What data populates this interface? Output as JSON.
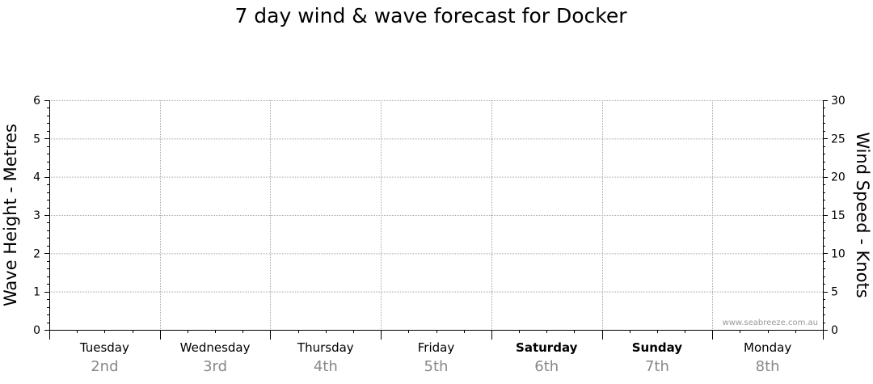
{
  "chart_data": {
    "type": "line",
    "title": "7 day wind & wave forecast for Docker",
    "y_left": {
      "label": "Wave Height - Metres",
      "range": [
        0,
        6
      ],
      "ticks": [
        0,
        1,
        2,
        3,
        4,
        5,
        6
      ]
    },
    "y_right": {
      "label": "Wind Speed - Knots",
      "range": [
        0,
        30
      ],
      "ticks": [
        0,
        5,
        10,
        15,
        20,
        25,
        30
      ]
    },
    "days": [
      {
        "name": "Tuesday",
        "date": "2nd",
        "bold": false
      },
      {
        "name": "Wednesday",
        "date": "3rd",
        "bold": false
      },
      {
        "name": "Thursday",
        "date": "4th",
        "bold": false
      },
      {
        "name": "Friday",
        "date": "5th",
        "bold": false
      },
      {
        "name": "Saturday",
        "date": "6th",
        "bold": true
      },
      {
        "name": "Sunday",
        "date": "7th",
        "bold": true
      },
      {
        "name": "Monday",
        "date": "8th",
        "bold": false
      }
    ],
    "series": [],
    "grid": true,
    "watermark": "www.seabreeze.com.au"
  }
}
